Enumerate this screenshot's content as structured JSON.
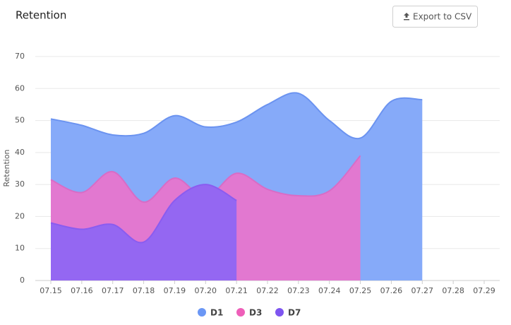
{
  "export_button": "Export to CSV",
  "chart_data": {
    "type": "area",
    "title": "Retention",
    "y_label": "Retention",
    "categories": [
      "07.15",
      "07.16",
      "07.17",
      "07.18",
      "07.19",
      "07.20",
      "07.21",
      "07.22",
      "07.23",
      "07.24",
      "07.25",
      "07.26",
      "07.27",
      "07.28",
      "07.29"
    ],
    "series": [
      {
        "name": "D1",
        "color": "#6b97f5",
        "values": [
          50.5,
          48.5,
          45.5,
          46,
          51.5,
          48,
          49.5,
          55,
          58.5,
          50,
          44.5,
          56,
          56.5,
          null,
          null
        ]
      },
      {
        "name": "D3",
        "color": "#ee5fb9",
        "values": [
          31.5,
          27.5,
          34,
          24.5,
          32,
          26,
          33.5,
          28.5,
          26.5,
          28,
          39,
          null,
          null,
          null,
          null
        ]
      },
      {
        "name": "D7",
        "color": "#7e55f0",
        "values": [
          18,
          16,
          17.5,
          12,
          25,
          30,
          25,
          null,
          null,
          null,
          null,
          null,
          null,
          null,
          null
        ]
      }
    ],
    "ylim": [
      0,
      70
    ],
    "yticks": [
      0,
      10,
      20,
      30,
      40,
      50,
      60,
      70
    ],
    "grid": true
  }
}
